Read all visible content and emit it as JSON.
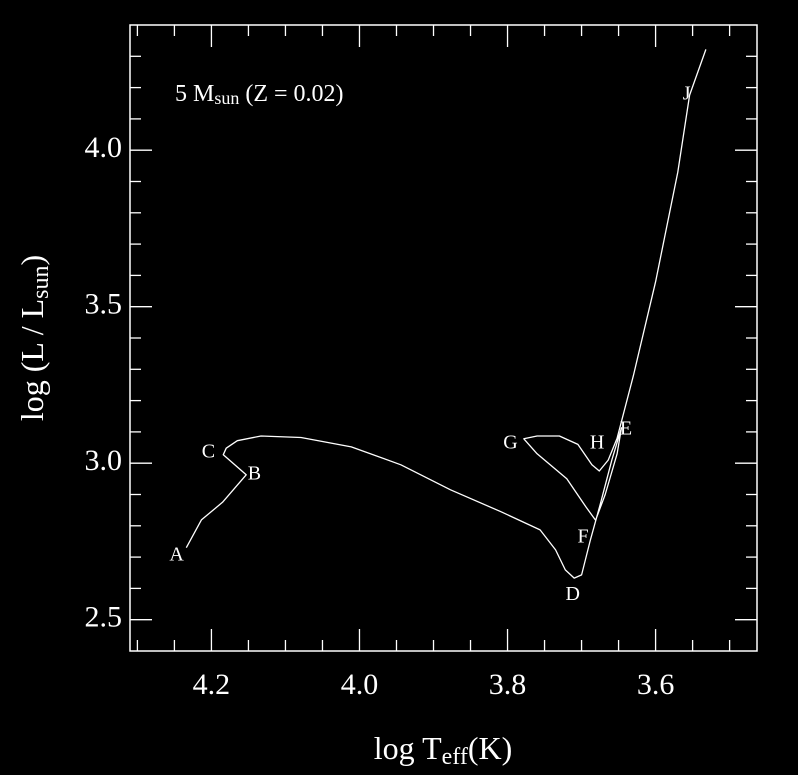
{
  "chart_data": {
    "type": "line",
    "annotation": {
      "main": "5 M",
      "sub": "sun",
      "rest": " (Z = 0.02)"
    },
    "xlabel": {
      "main": "log T",
      "sub": "eff",
      "rest": "(K)"
    },
    "ylabel": {
      "main": "log (L / L",
      "sub": "sun",
      "rest": ")"
    },
    "color": "#ffffff",
    "xlim": [
      4.31,
      3.463
    ],
    "ylim": [
      2.4,
      4.4
    ],
    "xticks": [
      {
        "value": 4.2,
        "label": "4.2"
      },
      {
        "value": 4.0,
        "label": "4.0"
      },
      {
        "value": 3.8,
        "label": "3.8"
      },
      {
        "value": 3.6,
        "label": "3.6"
      }
    ],
    "yticks": [
      {
        "value": 2.5,
        "label": "2.5"
      },
      {
        "value": 3.0,
        "label": "3.0"
      },
      {
        "value": 3.5,
        "label": "3.5"
      },
      {
        "value": 4.0,
        "label": "4.0"
      }
    ],
    "xminorticks": [
      4.3,
      4.25,
      4.15,
      4.1,
      4.05,
      3.95,
      3.9,
      3.85,
      3.75,
      3.7,
      3.65,
      3.55,
      3.5
    ],
    "yminorticks": [
      2.6,
      2.7,
      2.8,
      2.9,
      3.1,
      3.2,
      3.3,
      3.4,
      3.6,
      3.7,
      3.8,
      3.9,
      4.1,
      4.2,
      4.3
    ],
    "x": [
      4.234,
      4.2135,
      4.185,
      4.153,
      4.184,
      4.18,
      4.165,
      4.133,
      4.079,
      4.011,
      3.944,
      3.877,
      3.809,
      3.756,
      3.735,
      3.722,
      3.71,
      3.7,
      3.688,
      3.675,
      3.659,
      3.646,
      3.652,
      3.668,
      3.681,
      3.694,
      3.72,
      3.76,
      3.778,
      3.76,
      3.73,
      3.705,
      3.686,
      3.676,
      3.664,
      3.652,
      3.63,
      3.6,
      3.57,
      3.554,
      3.532
    ],
    "values": [
      2.73,
      2.819,
      2.875,
      2.963,
      3.027,
      3.048,
      3.072,
      3.087,
      3.082,
      3.052,
      2.995,
      2.915,
      2.845,
      2.787,
      2.723,
      2.659,
      2.633,
      2.643,
      2.755,
      2.867,
      3.011,
      3.113,
      3.03,
      2.9,
      2.818,
      2.86,
      2.95,
      3.03,
      3.078,
      3.087,
      3.087,
      3.06,
      2.995,
      2.975,
      3.01,
      3.08,
      3.28,
      3.58,
      3.93,
      4.176,
      4.322
    ],
    "point_labels": [
      {
        "label": "A",
        "x": 4.247,
        "y": 2.704
      },
      {
        "label": "B",
        "x": 4.142,
        "y": 2.963
      },
      {
        "label": "C",
        "x": 4.204,
        "y": 3.033
      },
      {
        "label": "D",
        "x": 3.712,
        "y": 2.577
      },
      {
        "label": "E",
        "x": 3.64,
        "y": 3.106
      },
      {
        "label": "F",
        "x": 3.698,
        "y": 2.762
      },
      {
        "label": "G",
        "x": 3.796,
        "y": 3.062
      },
      {
        "label": "H",
        "x": 3.679,
        "y": 3.062
      },
      {
        "label": "J",
        "x": 3.558,
        "y": 4.176
      }
    ]
  }
}
